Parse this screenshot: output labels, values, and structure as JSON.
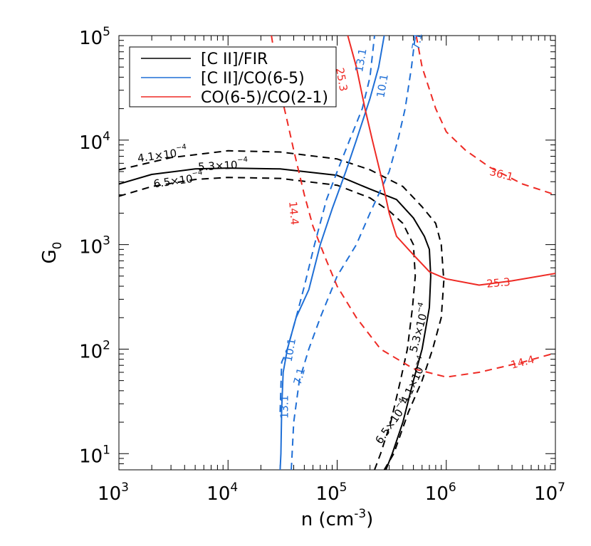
{
  "chart_data": {
    "type": "line",
    "title": "",
    "xlabel": "n (cm",
    "xlabel_sup": "-3",
    "xlabel_end": ")",
    "ylabel": "G",
    "ylabel_sub": "0",
    "x_scale": "log",
    "y_scale": "log",
    "xlim": [
      1000,
      10000000
    ],
    "ylim": [
      7,
      100000
    ],
    "grid": false,
    "legend_position": "top-left",
    "x_ticks": [
      {
        "value": 1000,
        "base": "10",
        "exp": "3"
      },
      {
        "value": 10000,
        "base": "10",
        "exp": "4"
      },
      {
        "value": 100000,
        "base": "10",
        "exp": "5"
      },
      {
        "value": 1000000,
        "base": "10",
        "exp": "6"
      },
      {
        "value": 10000000,
        "base": "10",
        "exp": "7"
      }
    ],
    "y_ticks": [
      {
        "value": 10,
        "base": "10",
        "exp": "1"
      },
      {
        "value": 100,
        "base": "10",
        "exp": "2"
      },
      {
        "value": 1000,
        "base": "10",
        "exp": "3"
      },
      {
        "value": 10000,
        "base": "10",
        "exp": "4"
      },
      {
        "value": 100000,
        "base": "10",
        "exp": "5"
      }
    ],
    "legend": [
      {
        "label": "[C II]/FIR",
        "color": "#000000"
      },
      {
        "label": "[C II]/CO(6-5)",
        "color": "#1f6fd6"
      },
      {
        "label": "CO(6-5)/CO(2-1)",
        "color": "#ee2a24"
      }
    ],
    "series": [
      {
        "group": "cii_fir",
        "color": "#000000",
        "dashed": false,
        "label": "5.3×10",
        "label_exp": "−4",
        "points": [
          [
            1000,
            3800
          ],
          [
            2000,
            4700
          ],
          [
            5000,
            5300
          ],
          [
            10000,
            5400
          ],
          [
            30000,
            5300
          ],
          [
            100000,
            4600
          ],
          [
            200000,
            3400
          ],
          [
            350000,
            2700
          ],
          [
            500000,
            1800
          ],
          [
            630000,
            1200
          ],
          [
            700000,
            900
          ],
          [
            720000,
            500
          ],
          [
            700000,
            250
          ],
          [
            600000,
            100
          ],
          [
            500000,
            50
          ],
          [
            400000,
            20
          ],
          [
            320000,
            10
          ],
          [
            280000,
            7
          ]
        ]
      },
      {
        "group": "cii_fir",
        "color": "#000000",
        "dashed": true,
        "label": "4.1×10",
        "label_exp": "−4",
        "points": [
          [
            1000,
            5200
          ],
          [
            3000,
            6800
          ],
          [
            10000,
            7900
          ],
          [
            30000,
            7700
          ],
          [
            100000,
            6600
          ],
          [
            200000,
            5200
          ],
          [
            400000,
            3600
          ],
          [
            600000,
            2300
          ],
          [
            800000,
            1600
          ],
          [
            900000,
            1000
          ],
          [
            950000,
            450
          ],
          [
            900000,
            200
          ],
          [
            750000,
            100
          ],
          [
            600000,
            50
          ],
          [
            450000,
            25
          ],
          [
            330000,
            10
          ],
          [
            270000,
            7
          ]
        ]
      },
      {
        "group": "cii_fir",
        "color": "#000000",
        "dashed": true,
        "label": "6.5×10",
        "label_exp": "−4",
        "points": [
          [
            1000,
            2900
          ],
          [
            2000,
            3600
          ],
          [
            5000,
            4200
          ],
          [
            10000,
            4400
          ],
          [
            30000,
            4300
          ],
          [
            100000,
            3700
          ],
          [
            200000,
            2800
          ],
          [
            300000,
            2100
          ],
          [
            400000,
            1600
          ],
          [
            500000,
            1000
          ],
          [
            520000,
            500
          ],
          [
            490000,
            250
          ],
          [
            440000,
            100
          ],
          [
            380000,
            50
          ],
          [
            310000,
            20
          ],
          [
            250000,
            10
          ],
          [
            220000,
            7
          ]
        ]
      },
      {
        "group": "cii_co65",
        "color": "#1f6fd6",
        "dashed": false,
        "label": "10.1",
        "points": [
          [
            30000,
            7
          ],
          [
            30500,
            10
          ],
          [
            31000,
            27
          ],
          [
            32000,
            60
          ],
          [
            35000,
            100
          ],
          [
            42000,
            200
          ],
          [
            55000,
            370
          ],
          [
            70000,
            1000
          ],
          [
            90000,
            2200
          ],
          [
            120000,
            5000
          ],
          [
            150000,
            10000
          ],
          [
            200000,
            25000
          ],
          [
            240000,
            50000
          ],
          [
            270000,
            100000
          ]
        ]
      },
      {
        "group": "cii_co65",
        "color": "#1f6fd6",
        "dashed": true,
        "label": "13.1",
        "points": [
          [
            30000,
            25
          ],
          [
            31000,
            75
          ],
          [
            35000,
            100
          ],
          [
            42000,
            200
          ],
          [
            50000,
            400
          ],
          [
            62000,
            1000
          ],
          [
            80000,
            2700
          ],
          [
            100000,
            5000
          ],
          [
            130000,
            10000
          ],
          [
            170000,
            20000
          ],
          [
            200000,
            40000
          ],
          [
            220000,
            100000
          ]
        ]
      },
      {
        "group": "cii_co65",
        "color": "#1f6fd6",
        "dashed": true,
        "label": "7.1",
        "points": [
          [
            38000,
            7
          ],
          [
            40000,
            20
          ],
          [
            45000,
            50
          ],
          [
            55000,
            100
          ],
          [
            70000,
            200
          ],
          [
            100000,
            500
          ],
          [
            150000,
            1000
          ],
          [
            200000,
            2000
          ],
          [
            300000,
            5000
          ],
          [
            360000,
            10000
          ],
          [
            420000,
            20000
          ],
          [
            480000,
            50000
          ],
          [
            520000,
            100000
          ]
        ]
      },
      {
        "group": "co_ratio",
        "color": "#ee2a24",
        "dashed": false,
        "label": "25.3",
        "points": [
          [
            125000,
            100000
          ],
          [
            150000,
            50000
          ],
          [
            180000,
            20000
          ],
          [
            210000,
            10000
          ],
          [
            260000,
            4000
          ],
          [
            300000,
            2000
          ],
          [
            350000,
            1200
          ],
          [
            500000,
            800
          ],
          [
            700000,
            550
          ],
          [
            1000000,
            470
          ],
          [
            2000000,
            410
          ],
          [
            4000000,
            450
          ],
          [
            10000000,
            530
          ]
        ]
      },
      {
        "group": "co_ratio",
        "color": "#ee2a24",
        "dashed": true,
        "label": "14.4",
        "points": [
          [
            25000,
            100000
          ],
          [
            30000,
            30000
          ],
          [
            35000,
            15000
          ],
          [
            40000,
            8000
          ],
          [
            50000,
            3000
          ],
          [
            60000,
            1500
          ],
          [
            80000,
            700
          ],
          [
            100000,
            400
          ],
          [
            150000,
            200
          ],
          [
            250000,
            100
          ],
          [
            500000,
            65
          ],
          [
            1000000,
            54
          ],
          [
            2000000,
            60
          ],
          [
            5000000,
            75
          ],
          [
            10000000,
            92
          ]
        ]
      },
      {
        "group": "co_ratio",
        "color": "#ee2a24",
        "dashed": true,
        "label": "36.1",
        "points": [
          [
            530000,
            100000
          ],
          [
            600000,
            50000
          ],
          [
            800000,
            20000
          ],
          [
            1000000,
            12000
          ],
          [
            1500000,
            8000
          ],
          [
            2500000,
            5500
          ],
          [
            5000000,
            3800
          ],
          [
            10000000,
            3000
          ]
        ]
      }
    ],
    "contour_labels": [
      {
        "text": "4.1×10",
        "exp": "−4",
        "color": "#000000",
        "x": 2500,
        "y": 7200,
        "angle": -8
      },
      {
        "text": "5.3×10",
        "exp": "−4",
        "color": "#000000",
        "x": 9000,
        "y": 5700,
        "angle": -3
      },
      {
        "text": "6.5×10",
        "exp": "−4",
        "color": "#000000",
        "x": 3500,
        "y": 4100,
        "angle": -8
      },
      {
        "text": "5.3×10",
        "exp": "−4",
        "color": "#000000",
        "x": 570000,
        "y": 160,
        "angle": -75
      },
      {
        "text": "4.1×10",
        "exp": "−4",
        "color": "#000000",
        "x": 510000,
        "y": 50,
        "angle": -65
      },
      {
        "text": "6.5×10",
        "exp": "−4",
        "color": "#000000",
        "x": 320000,
        "y": 20,
        "angle": -55
      },
      {
        "text": "13.1",
        "color": "#1f6fd6",
        "x": 33000,
        "y": 28,
        "angle": -90
      },
      {
        "text": "10.1",
        "color": "#1f6fd6",
        "x": 37000,
        "y": 98,
        "angle": -80
      },
      {
        "text": "7.1",
        "color": "#1f6fd6",
        "x": 45000,
        "y": 55,
        "angle": -75
      },
      {
        "text": "13.1",
        "color": "#1f6fd6",
        "x": 165000,
        "y": 58000,
        "angle": -80
      },
      {
        "text": "10.1",
        "color": "#1f6fd6",
        "x": 260000,
        "y": 33000,
        "angle": -80
      },
      {
        "text": "7.1",
        "color": "#1f6fd6",
        "x": 540000,
        "y": 88000,
        "angle": -80
      },
      {
        "text": "25.3",
        "color": "#ee2a24",
        "x": 110000,
        "y": 38000,
        "angle": 80
      },
      {
        "text": "14.4",
        "color": "#ee2a24",
        "x": 40000,
        "y": 2000,
        "angle": 85
      },
      {
        "text": "36.1",
        "color": "#ee2a24",
        "x": 3200000,
        "y": 4700,
        "angle": 15
      },
      {
        "text": "25.3",
        "color": "#ee2a24",
        "x": 3000000,
        "y": 430,
        "angle": -5
      },
      {
        "text": "14.4",
        "color": "#ee2a24",
        "x": 5000000,
        "y": 75,
        "angle": -15
      }
    ]
  }
}
